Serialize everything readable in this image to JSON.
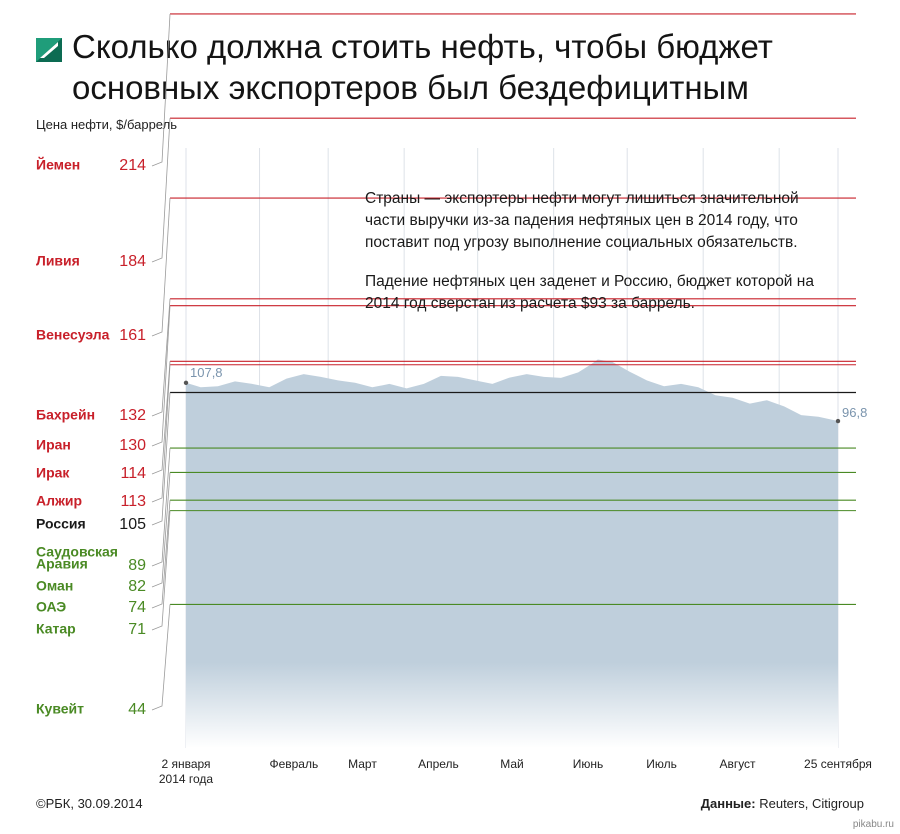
{
  "header": {
    "title_line1": "Сколько должна стоить нефть, чтобы бюджет",
    "title_line2": "основных экспортеров был бездефицитным",
    "unit_label": "Цена нефти, $/баррель"
  },
  "note": {
    "paragraph1": "Страны — экспортеры нефти могут лишиться значительной части выручки из-за падения нефтяных цен в 2014 году, что поставит под угрозу выполнение социальных обязательств.",
    "paragraph2": "Падение нефтяных цен заденет и Россию, бюджет которой на 2014 год сверстан из расчета $93 за баррель."
  },
  "footer": {
    "source_credit": "©РБК, 30.09.2014",
    "data_label": "Данные:",
    "data_sources": "Reuters, Citigroup",
    "watermark": "pikabu.ru"
  },
  "colors": {
    "above": "#c8202a",
    "russia": "#1a1a1a",
    "below": "#4a8a24",
    "area": "#bfcfdc",
    "area_label": "#7a94ad",
    "logo_green": "#1f9d7a"
  },
  "chart_data": {
    "type": "area",
    "ylabel": "Цена нефти, $/баррель",
    "ylim": [
      26,
      230
    ],
    "x_ticks": [
      "2 января 2014 года",
      "Февраль",
      "Март",
      "Апрель",
      "Май",
      "Июнь",
      "Июль",
      "Август",
      "25 сентября"
    ],
    "series": [
      {
        "dates": [
          "2014-01-02",
          "2014-01-08",
          "2014-01-15",
          "2014-01-22",
          "2014-01-29",
          "2014-02-05",
          "2014-02-12",
          "2014-02-19",
          "2014-02-26",
          "2014-03-05",
          "2014-03-12",
          "2014-03-19",
          "2014-03-26",
          "2014-04-02",
          "2014-04-09",
          "2014-04-16",
          "2014-04-23",
          "2014-04-30",
          "2014-05-07",
          "2014-05-14",
          "2014-05-21",
          "2014-05-28",
          "2014-06-04",
          "2014-06-11",
          "2014-06-16",
          "2014-06-19",
          "2014-06-25",
          "2014-07-02",
          "2014-07-09",
          "2014-07-16",
          "2014-07-23",
          "2014-07-30",
          "2014-08-06",
          "2014-08-13",
          "2014-08-20",
          "2014-08-27",
          "2014-09-03",
          "2014-09-10",
          "2014-09-17",
          "2014-09-25"
        ],
        "values": [
          107.8,
          106.5,
          106.8,
          108.2,
          107.5,
          106.5,
          109.0,
          110.3,
          109.5,
          108.5,
          107.8,
          106.5,
          107.5,
          106.2,
          107.5,
          109.8,
          109.5,
          108.5,
          107.5,
          109.3,
          110.3,
          109.5,
          109.2,
          110.8,
          113.0,
          114.5,
          113.8,
          111.0,
          108.5,
          106.8,
          107.5,
          106.5,
          104.2,
          103.5,
          101.8,
          102.8,
          101.0,
          98.5,
          98.0,
          96.8
        ],
        "start_label": "107,8",
        "end_label": "96,8"
      }
    ],
    "thresholds": [
      {
        "country": "Йемен",
        "value": 214,
        "label": "214",
        "group": "above"
      },
      {
        "country": "Ливия",
        "value": 184,
        "label": "184",
        "group": "above"
      },
      {
        "country": "Венесуэла",
        "value": 161,
        "label": "161",
        "group": "above"
      },
      {
        "country": "Бахрейн",
        "value": 132,
        "label": "132",
        "group": "above"
      },
      {
        "country": "Иран",
        "value": 130,
        "label": "130",
        "group": "above"
      },
      {
        "country": "Ирак",
        "value": 114,
        "label": "114",
        "group": "above"
      },
      {
        "country": "Алжир",
        "value": 113,
        "label": "113",
        "group": "above"
      },
      {
        "country": "Россия",
        "value": 105,
        "label": "105",
        "group": "russia"
      },
      {
        "country": "Саудовская Аравия",
        "value": 89,
        "label": "89",
        "group": "below"
      },
      {
        "country": "Оман",
        "value": 82,
        "label": "82",
        "group": "below"
      },
      {
        "country": "ОАЭ",
        "value": 74,
        "label": "74",
        "group": "below"
      },
      {
        "country": "Катар",
        "value": 71,
        "label": "71",
        "group": "below"
      },
      {
        "country": "Кувейт",
        "value": 44,
        "label": "44",
        "group": "below"
      }
    ]
  }
}
